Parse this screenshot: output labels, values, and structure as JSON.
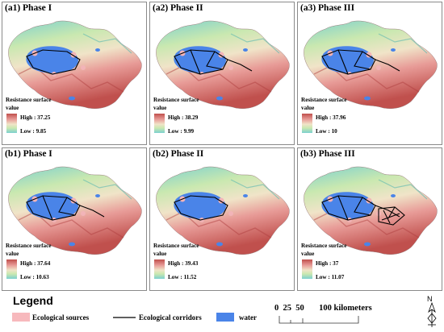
{
  "panels": [
    {
      "label": "(a1) Phase I",
      "high": "High : 37.25",
      "low": "Low : 9.85",
      "corridor_level": 1,
      "source_fill": "#f2b4b8"
    },
    {
      "label": "(a2) Phase II",
      "high": "High : 38.29",
      "low": "Low : 9.99",
      "corridor_level": 2,
      "source_fill": "#f2b4b8"
    },
    {
      "label": "(a3) Phase III",
      "high": "High : 37.96",
      "low": "Low : 10",
      "corridor_level": 2,
      "source_fill": "#f2b4b8"
    },
    {
      "label": "(b1) Phase I",
      "high": "High : 37.64",
      "low": "Low : 10.63",
      "corridor_level": 2,
      "source_fill": "#f2b4b8"
    },
    {
      "label": "(b2) Phase II",
      "high": "High : 39.43",
      "low": "Low : 11.52",
      "corridor_level": 1,
      "source_fill": "#f2b4b8"
    },
    {
      "label": "(b3) Phase III",
      "high": "High : 37",
      "low": "Low : 11.07",
      "corridor_level": 3,
      "source_fill": "#f2b4b8"
    }
  ],
  "resistance": {
    "title": "Resistance surface",
    "value_label": "value"
  },
  "legend": {
    "title": "Legend",
    "sources_label": "Ecological sources",
    "corridors_label": "Ecological corridors",
    "water_label": "water",
    "sources_color": "#f7b9bd",
    "water_color": "#4a84e8",
    "corridor_color": "#000000"
  },
  "scale": {
    "ticks": "0  25  50       100 kilometers"
  },
  "north": {
    "label": "N"
  },
  "colors": {
    "high": "#c0504d",
    "mid": "#f0e4c8",
    "low": "#7cd0cf",
    "lake": "#4a84e8"
  }
}
